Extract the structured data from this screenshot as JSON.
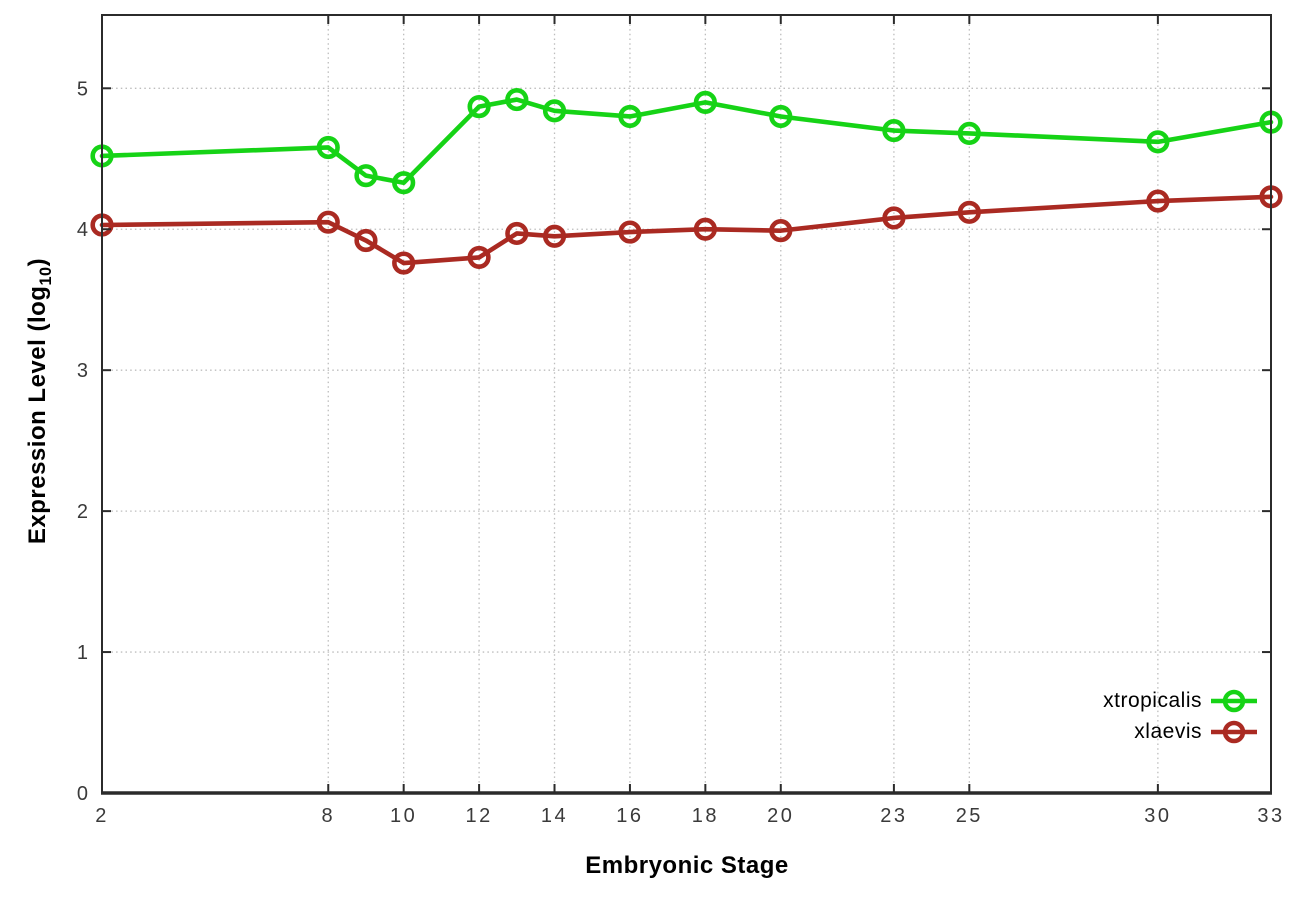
{
  "chart_data": {
    "type": "line",
    "title": "",
    "xlabel": "Embryonic Stage",
    "ylabel": "Expression Level (log10)",
    "ylabel_parts": {
      "pre": "Expression Level (log",
      "sub": "10",
      "post": ")"
    },
    "x": [
      2,
      8,
      9,
      10,
      12,
      13,
      14,
      16,
      18,
      20,
      23,
      25,
      30,
      33
    ],
    "x_tick_labels": [
      "2",
      "8",
      "10",
      "12",
      "14",
      "16",
      "18",
      "20",
      "23",
      "25",
      "30",
      "33"
    ],
    "x_tick_values": [
      2,
      8,
      10,
      12,
      14,
      16,
      18,
      20,
      23,
      25,
      30,
      33
    ],
    "y_tick_labels": [
      "0",
      "1",
      "2",
      "3",
      "4",
      "5"
    ],
    "y_tick_values": [
      0,
      1,
      2,
      3,
      4,
      5
    ],
    "xlim": [
      2,
      33
    ],
    "ylim": [
      0,
      5.52
    ],
    "grid": true,
    "legend_position": "bottom-right",
    "marker": "open-circle",
    "series": [
      {
        "name": "xtropicalis",
        "color": "#16d316",
        "values": [
          4.52,
          4.58,
          4.38,
          4.33,
          4.87,
          4.92,
          4.84,
          4.8,
          4.9,
          4.8,
          4.7,
          4.68,
          4.62,
          4.76
        ]
      },
      {
        "name": "xlaevis",
        "color": "#aa2a22",
        "values": [
          4.03,
          4.05,
          3.92,
          3.76,
          3.8,
          3.97,
          3.95,
          3.98,
          4.0,
          3.99,
          4.08,
          4.12,
          4.2,
          4.23
        ]
      }
    ],
    "style": {
      "border_color": "#2b2b2b",
      "grid_color": "#bdbdbd",
      "tick_label_color": "#3a3a3a"
    }
  }
}
